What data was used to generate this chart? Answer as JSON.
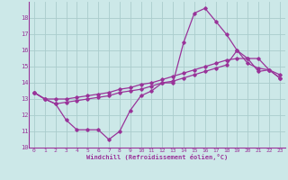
{
  "xlabel": "Windchill (Refroidissement éolien,°C)",
  "background_color": "#cce8e8",
  "line_color": "#993399",
  "grid_color": "#aacccc",
  "xlim": [
    -0.5,
    23.5
  ],
  "ylim": [
    10,
    19
  ],
  "yticks": [
    10,
    11,
    12,
    13,
    14,
    15,
    16,
    17,
    18
  ],
  "xticks": [
    0,
    1,
    2,
    3,
    4,
    5,
    6,
    7,
    8,
    9,
    10,
    11,
    12,
    13,
    14,
    15,
    16,
    17,
    18,
    19,
    20,
    21,
    22,
    23
  ],
  "line1_x": [
    0,
    1,
    2,
    3,
    4,
    5,
    6,
    7,
    8,
    9,
    10,
    11,
    12,
    13,
    14,
    15,
    16,
    17,
    18,
    19,
    20,
    21,
    22,
    23
  ],
  "line1_y": [
    13.4,
    13.0,
    12.7,
    11.7,
    11.1,
    11.1,
    11.1,
    10.5,
    11.0,
    12.3,
    13.2,
    13.5,
    14.0,
    14.0,
    16.5,
    18.3,
    18.6,
    17.8,
    17.0,
    16.0,
    15.5,
    14.7,
    14.8,
    14.3
  ],
  "line2_x": [
    0,
    1,
    2,
    3,
    4,
    5,
    6,
    7,
    8,
    9,
    10,
    11,
    12,
    13,
    14,
    15,
    16,
    17,
    18,
    19,
    20,
    21,
    22,
    23
  ],
  "line2_y": [
    13.4,
    13.0,
    13.0,
    13.0,
    13.1,
    13.2,
    13.3,
    13.4,
    13.6,
    13.7,
    13.9,
    14.0,
    14.2,
    14.4,
    14.6,
    14.8,
    15.0,
    15.2,
    15.4,
    15.5,
    15.5,
    15.5,
    14.8,
    14.5
  ],
  "line3_x": [
    0,
    1,
    2,
    3,
    4,
    5,
    6,
    7,
    8,
    9,
    10,
    11,
    12,
    13,
    14,
    15,
    16,
    17,
    18,
    19,
    20,
    21,
    22,
    23
  ],
  "line3_y": [
    13.4,
    13.0,
    12.7,
    12.8,
    12.9,
    13.0,
    13.1,
    13.2,
    13.4,
    13.5,
    13.6,
    13.8,
    14.0,
    14.1,
    14.3,
    14.5,
    14.7,
    14.9,
    15.1,
    16.0,
    15.2,
    14.9,
    14.8,
    14.3
  ]
}
